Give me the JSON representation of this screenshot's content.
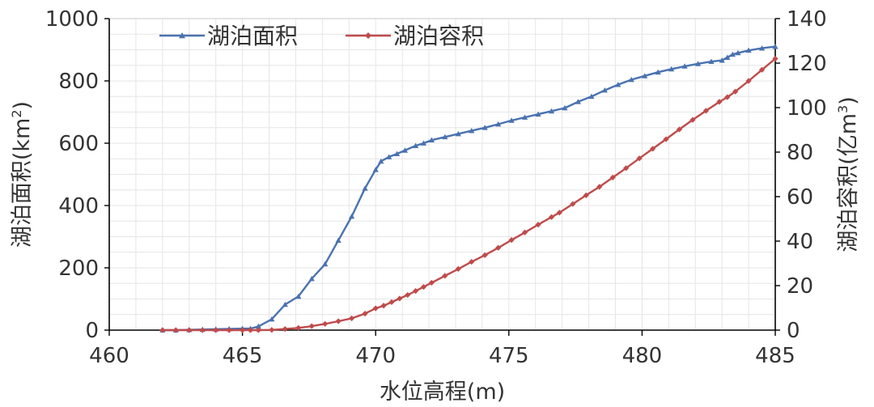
{
  "chart_data": {
    "type": "line",
    "xlabel": "水位高程(m)",
    "ylabel_left": {
      "text": "湖泊面积(km",
      "sup": "2",
      "suffix": ")"
    },
    "ylabel_right": {
      "text": "湖泊容积(亿m",
      "sup": "3",
      "suffix": ")"
    },
    "xlim": [
      460,
      485
    ],
    "ylim_left": [
      0,
      1000
    ],
    "ylim_right": [
      0,
      140
    ],
    "x_ticks": [
      460,
      465,
      470,
      475,
      480,
      485
    ],
    "y_left_ticks": [
      0,
      200,
      400,
      600,
      800,
      1000
    ],
    "y_right_ticks": [
      0,
      20,
      40,
      60,
      80,
      100,
      120,
      140
    ],
    "grid": true,
    "legend_position": "top-left",
    "series": [
      {
        "name": "湖泊面积",
        "axis": "left",
        "color": "#4a72b0",
        "marker": "triangle",
        "points": [
          [
            462,
            0
          ],
          [
            462.5,
            0
          ],
          [
            463,
            1
          ],
          [
            463.5,
            2
          ],
          [
            464,
            3
          ],
          [
            464.5,
            4
          ],
          [
            465,
            5
          ],
          [
            465.3,
            5
          ],
          [
            465.6,
            12
          ],
          [
            466.1,
            35
          ],
          [
            466.6,
            82
          ],
          [
            467.1,
            108
          ],
          [
            467.6,
            165
          ],
          [
            468.1,
            212
          ],
          [
            468.6,
            288
          ],
          [
            469.1,
            365
          ],
          [
            469.6,
            455
          ],
          [
            470,
            515
          ],
          [
            470.2,
            542
          ],
          [
            470.5,
            556
          ],
          [
            470.8,
            566
          ],
          [
            471.1,
            577
          ],
          [
            471.5,
            592
          ],
          [
            471.8,
            600
          ],
          [
            472.1,
            610
          ],
          [
            472.6,
            620
          ],
          [
            473.1,
            630
          ],
          [
            473.6,
            640
          ],
          [
            474.1,
            650
          ],
          [
            474.6,
            661
          ],
          [
            475.1,
            673
          ],
          [
            475.6,
            683
          ],
          [
            476.1,
            693
          ],
          [
            476.6,
            703
          ],
          [
            477.1,
            713
          ],
          [
            477.6,
            733
          ],
          [
            478.1,
            750
          ],
          [
            478.6,
            770
          ],
          [
            479.1,
            788
          ],
          [
            479.6,
            804
          ],
          [
            480.1,
            816
          ],
          [
            480.6,
            828
          ],
          [
            481.1,
            838
          ],
          [
            481.6,
            847
          ],
          [
            482.1,
            855
          ],
          [
            482.6,
            862
          ],
          [
            483,
            866
          ],
          [
            483.2,
            875
          ],
          [
            483.4,
            885
          ],
          [
            483.6,
            890
          ],
          [
            484,
            898
          ],
          [
            484.5,
            905
          ],
          [
            485,
            910
          ]
        ]
      },
      {
        "name": "湖泊容积",
        "axis": "right",
        "color": "#bf4b4b",
        "marker": "diamond",
        "points": [
          [
            462,
            0
          ],
          [
            462.5,
            0
          ],
          [
            463,
            0
          ],
          [
            463.5,
            0
          ],
          [
            464,
            0
          ],
          [
            464.5,
            0
          ],
          [
            465,
            0
          ],
          [
            465.3,
            0
          ],
          [
            465.6,
            0
          ],
          [
            466.1,
            0.1
          ],
          [
            466.6,
            0.5
          ],
          [
            467.1,
            1
          ],
          [
            467.6,
            1.8
          ],
          [
            468.1,
            2.8
          ],
          [
            468.6,
            4
          ],
          [
            469.1,
            5.3
          ],
          [
            469.6,
            7.4
          ],
          [
            470,
            9.8
          ],
          [
            470.3,
            11
          ],
          [
            470.6,
            12.6
          ],
          [
            470.9,
            14.2
          ],
          [
            471.2,
            15.8
          ],
          [
            471.5,
            17.6
          ],
          [
            471.8,
            19.4
          ],
          [
            472.1,
            21.3
          ],
          [
            472.6,
            24.4
          ],
          [
            473.1,
            27.5
          ],
          [
            473.6,
            30.7
          ],
          [
            474.1,
            33.7
          ],
          [
            474.6,
            37
          ],
          [
            475.1,
            40.5
          ],
          [
            475.6,
            43.9
          ],
          [
            476.1,
            47.4
          ],
          [
            476.6,
            50.8
          ],
          [
            476.9,
            52.8
          ],
          [
            477.4,
            56.7
          ],
          [
            477.9,
            60.6
          ],
          [
            478.4,
            64.4
          ],
          [
            478.9,
            68.6
          ],
          [
            479.4,
            72.8
          ],
          [
            479.9,
            77.2
          ],
          [
            480.4,
            81.5
          ],
          [
            480.9,
            85.8
          ],
          [
            481.4,
            90.2
          ],
          [
            481.9,
            94.5
          ],
          [
            482.4,
            98.6
          ],
          [
            482.9,
            102.6
          ],
          [
            483.2,
            104.7
          ],
          [
            483.5,
            107.2
          ],
          [
            484,
            112
          ],
          [
            484.5,
            117
          ],
          [
            485,
            122
          ]
        ]
      }
    ]
  }
}
